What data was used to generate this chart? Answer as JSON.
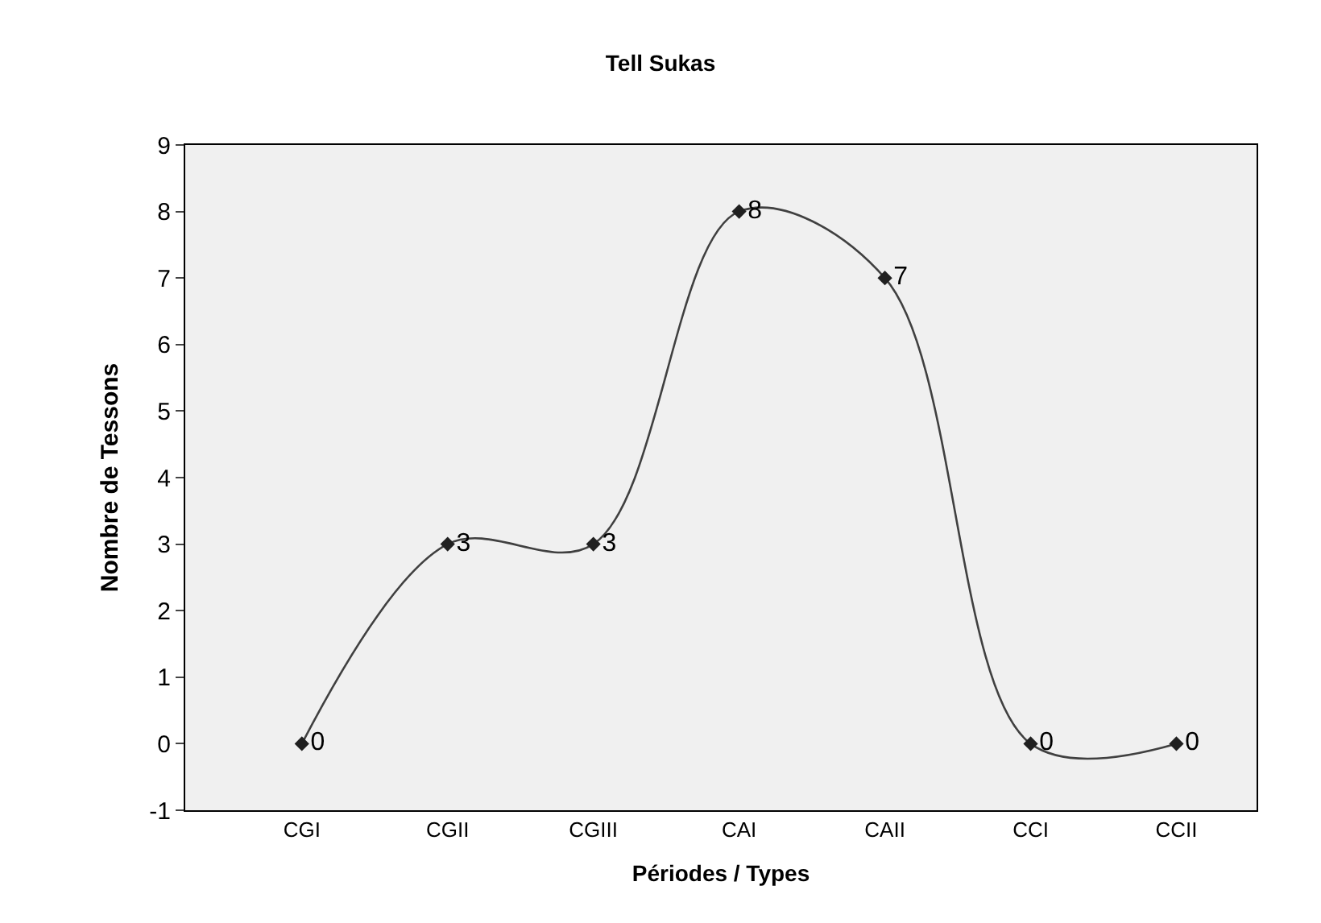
{
  "chart_data": {
    "type": "line",
    "title": "Tell Sukas",
    "xlabel": "Périodes / Types",
    "ylabel": "Nombre de Tessons",
    "categories": [
      "CGI",
      "CGII",
      "CGIII",
      "CAI",
      "CAII",
      "CCI",
      "CCII"
    ],
    "series": [
      {
        "color": "#404040",
        "values": [
          0,
          3,
          3,
          8,
          7,
          0,
          0
        ]
      }
    ],
    "ylim": [
      -1,
      9
    ],
    "yticks": [
      -1,
      0,
      1,
      2,
      3,
      4,
      5,
      6,
      7,
      8,
      9
    ],
    "data_labels": true,
    "marker": "diamond",
    "line_style": "solid",
    "grid": false,
    "legend": false
  }
}
